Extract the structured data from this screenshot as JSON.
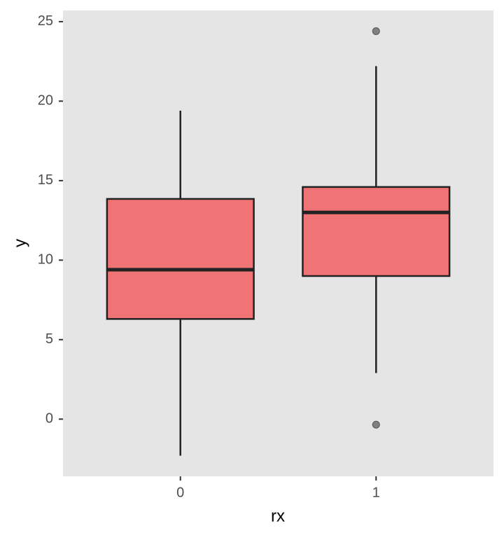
{
  "chart_data": {
    "type": "box",
    "x_label": "rx",
    "y_label": "y",
    "categories": [
      "0",
      "1"
    ],
    "boxes": [
      {
        "min": -2.3,
        "q1": 6.3,
        "median": 9.4,
        "q3": 13.85,
        "max": 19.4,
        "outliers": []
      },
      {
        "min": 2.9,
        "q1": 9.0,
        "median": 13.0,
        "q3": 14.6,
        "max": 22.2,
        "outliers": [
          24.4,
          -0.35
        ]
      }
    ],
    "color": "#f07375",
    "outlier_color": "#808080",
    "ylim": [
      -3.6,
      25.7
    ],
    "yticks": [
      0,
      5,
      10,
      15,
      20,
      25
    ],
    "grid": false
  }
}
